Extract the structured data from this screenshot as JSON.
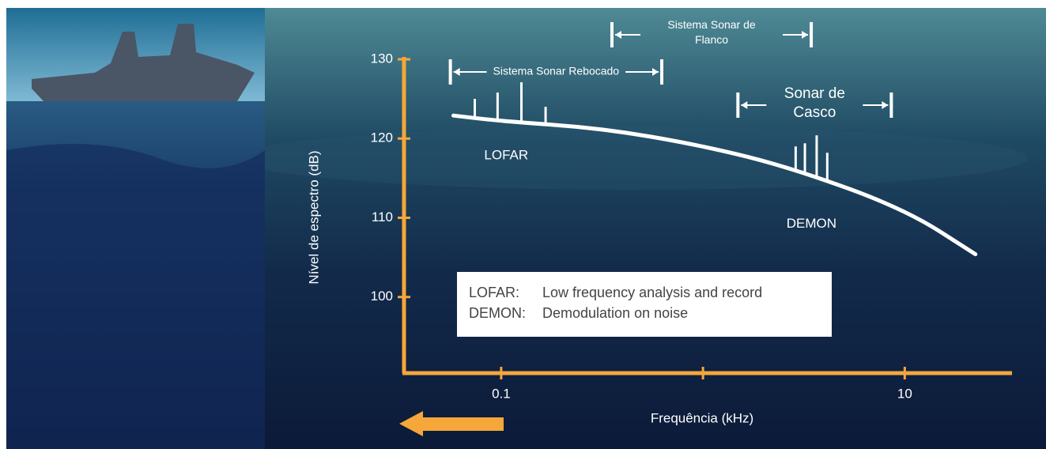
{
  "chart_data": {
    "type": "line",
    "x_label": "Frequência (kHz)",
    "y_label": "Nível de espectro (dB)",
    "xscale": "log",
    "xlim": [
      0.033,
      34
    ],
    "xticks": [
      0.1,
      {
        "value": 1,
        "label": null
      },
      10
    ],
    "ylim": [
      90,
      130
    ],
    "yticks": [
      100,
      110,
      120,
      130
    ],
    "axis_color": "#f5a73a",
    "series": [
      {
        "color": "#ffffff",
        "x": [
          0.058,
          0.1,
          0.315,
          1,
          2.75,
          10,
          22.4
        ],
        "values": [
          122.9,
          122.2,
          121.3,
          119.1,
          116.3,
          111.1,
          105.4
        ]
      }
    ],
    "spikes": [
      {
        "label": "LOFAR",
        "x": [
          0.074,
          0.096,
          0.126,
          0.166
        ],
        "values": [
          125.0,
          125.8,
          127.1,
          124.0
        ]
      },
      {
        "label": "DEMON",
        "x": [
          2.88,
          3.2,
          3.66,
          4.13
        ],
        "values": [
          119.0,
          119.4,
          120.4,
          118.2
        ]
      }
    ],
    "ranges": [
      {
        "label": [
          "Sistema Sonar Rebocado"
        ],
        "from": 0.056,
        "to": 0.625
      },
      {
        "label": [
          "Sistema Sonar de",
          "Flanco"
        ],
        "from": 0.354,
        "to": 3.44
      },
      {
        "label": [
          "Sonar de",
          "Casco"
        ],
        "from": 1.49,
        "to": 8.58
      }
    ],
    "legend": [
      [
        "LOFAR:",
        "Low frequency analysis and record"
      ],
      [
        "DEMON:",
        "Demodulation on noise"
      ]
    ]
  }
}
